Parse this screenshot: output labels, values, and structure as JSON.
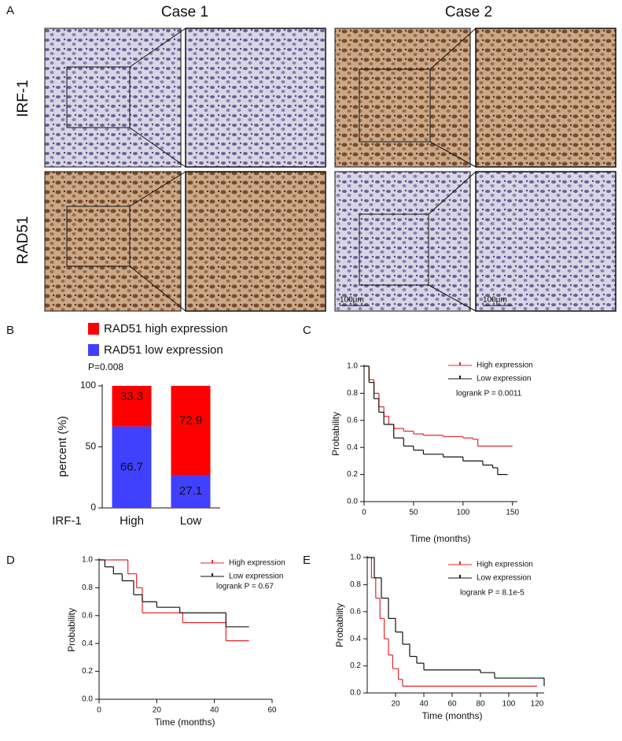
{
  "panel_a": {
    "label": "A",
    "columns": [
      "Case 1",
      "Case 2"
    ],
    "rows": [
      "IRF-1",
      "RAD51"
    ],
    "scale_bars": [
      "100μm",
      "100μm"
    ]
  },
  "chart_data": [
    {
      "type": "stacked_bar",
      "panel_label": "B",
      "annotation": "P=0.008",
      "xlabel": "IRF-1",
      "ylabel": "percent (%)",
      "categories": [
        "High",
        "Low"
      ],
      "series": [
        {
          "name": "RAD51 high expression",
          "color": "#ff0000",
          "values": [
            33.3,
            72.9
          ]
        },
        {
          "name": "RAD51 low expression",
          "color": "#4040ff",
          "values": [
            66.7,
            27.1
          ]
        }
      ],
      "ylim": [
        0,
        100
      ],
      "yticks": [
        0,
        50,
        100
      ]
    },
    {
      "type": "km",
      "panel_label": "C",
      "annotation": "logrank P = 0.0011",
      "xlabel": "Time (months)",
      "ylabel": "Probability",
      "series": [
        {
          "name": "High expression",
          "color": "#e8262a",
          "x": [
            0,
            5,
            10,
            15,
            20,
            25,
            30,
            40,
            50,
            60,
            80,
            100,
            110,
            115,
            150
          ],
          "values": [
            1,
            0.9,
            0.8,
            0.7,
            0.63,
            0.57,
            0.54,
            0.52,
            0.5,
            0.49,
            0.48,
            0.47,
            0.46,
            0.41,
            0.41
          ]
        },
        {
          "name": "Low expression",
          "color": "#111111",
          "x": [
            0,
            5,
            10,
            15,
            20,
            30,
            40,
            50,
            60,
            80,
            100,
            120,
            130,
            135,
            145
          ],
          "values": [
            1,
            0.88,
            0.76,
            0.66,
            0.57,
            0.47,
            0.41,
            0.38,
            0.35,
            0.33,
            0.3,
            0.27,
            0.25,
            0.2,
            0.2
          ]
        }
      ],
      "xlim": [
        0,
        155
      ],
      "xticks": [
        0,
        50,
        100,
        150
      ],
      "ylim": [
        0,
        1
      ],
      "yticks": [
        {
          "value": 0,
          "label": "0.0"
        },
        0.2,
        0.4,
        0.6,
        0.8,
        {
          "value": 1,
          "label": "1.0"
        }
      ]
    },
    {
      "type": "km",
      "panel_label": "D",
      "annotation": "logrank P = 0.67",
      "xlabel": "Time (months)",
      "ylabel": "Probability",
      "series": [
        {
          "name": "High expression",
          "color": "#e8262a",
          "x": [
            0,
            4,
            10,
            13,
            15,
            29,
            38,
            44,
            52
          ],
          "values": [
            1,
            1,
            0.9,
            0.8,
            0.62,
            0.55,
            0.55,
            0.42,
            0.42
          ]
        },
        {
          "name": "Low expression",
          "color": "#111111",
          "x": [
            0,
            2,
            5,
            8,
            12,
            15,
            20,
            28,
            38,
            44,
            52
          ],
          "values": [
            1,
            0.95,
            0.9,
            0.85,
            0.75,
            0.7,
            0.66,
            0.62,
            0.62,
            0.52,
            0.52
          ]
        }
      ],
      "xlim": [
        0,
        60
      ],
      "xticks": [
        0,
        20,
        40,
        60
      ],
      "ylim": [
        0,
        1
      ],
      "yticks": [
        {
          "value": 0,
          "label": "0.0"
        },
        0.2,
        0.4,
        0.6,
        0.8,
        {
          "value": 1,
          "label": "1.0"
        }
      ]
    },
    {
      "type": "km",
      "panel_label": "E",
      "annotation": "logrank P = 8.1e-5",
      "xlabel": "Time (months)",
      "ylabel": "Probability",
      "series": [
        {
          "name": "High expression",
          "color": "#e8262a",
          "x": [
            0,
            3,
            6,
            9,
            12,
            15,
            18,
            22,
            25,
            120
          ],
          "values": [
            1,
            0.85,
            0.7,
            0.55,
            0.4,
            0.28,
            0.18,
            0.1,
            0.05,
            0.05
          ]
        },
        {
          "name": "Low expression",
          "color": "#111111",
          "x": [
            0,
            5,
            10,
            15,
            20,
            25,
            30,
            35,
            40,
            60,
            80,
            90,
            100,
            120,
            125
          ],
          "values": [
            1,
            0.85,
            0.7,
            0.55,
            0.45,
            0.36,
            0.27,
            0.22,
            0.17,
            0.17,
            0.15,
            0.11,
            0.11,
            0.11,
            0.05
          ]
        }
      ],
      "xlim": [
        0,
        125
      ],
      "xticks": [
        20,
        40,
        60,
        80,
        100,
        120
      ],
      "ylim": [
        0,
        1
      ],
      "yticks": [
        {
          "value": 0,
          "label": "0.0"
        },
        0.2,
        0.4,
        0.6,
        0.8,
        {
          "value": 1,
          "label": "1.0"
        }
      ]
    }
  ]
}
